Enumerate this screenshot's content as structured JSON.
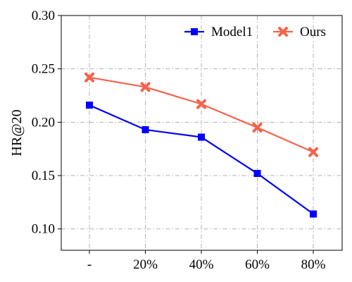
{
  "chart_data": {
    "type": "line",
    "categories": [
      "-",
      "20%",
      "40%",
      "60%",
      "80%"
    ],
    "series": [
      {
        "name": "Model1",
        "values": [
          0.216,
          0.193,
          0.186,
          0.152,
          0.114
        ],
        "color": "#0000ff",
        "marker": "square"
      },
      {
        "name": "Ours",
        "values": [
          0.242,
          0.233,
          0.217,
          0.195,
          0.172
        ],
        "color": "#f4634b",
        "marker": "x"
      }
    ],
    "xlabel": "",
    "ylabel": "HR@20",
    "ylim": [
      0.08,
      0.3
    ],
    "yticks": [
      "0.10",
      "0.15",
      "0.20",
      "0.25",
      "0.30"
    ],
    "grid": true,
    "legend_position": "top-right"
  }
}
